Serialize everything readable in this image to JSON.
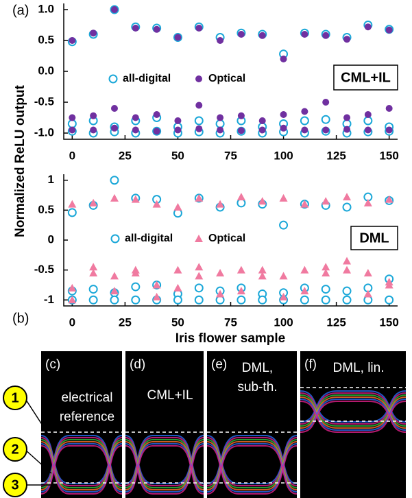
{
  "chart_data": [
    {
      "type": "scatter",
      "title": "CML+IL",
      "x": [
        0,
        10,
        20,
        30,
        40,
        50,
        60,
        70,
        80,
        90,
        100,
        110,
        120,
        130,
        140,
        150,
        0,
        10,
        20,
        30,
        40,
        50,
        60,
        70,
        80,
        90,
        100,
        110,
        120,
        130,
        140,
        150,
        0,
        10,
        20,
        30,
        40,
        50,
        60,
        70,
        80,
        90,
        100,
        110,
        120,
        130,
        140,
        150
      ],
      "series": [
        {
          "name": "all-digital",
          "color": "#1aa7d8",
          "marker": "circle-open",
          "values": [
            0.48,
            0.6,
            1.0,
            0.72,
            0.7,
            0.55,
            0.72,
            0.55,
            0.62,
            0.6,
            0.28,
            0.62,
            0.6,
            0.55,
            0.75,
            0.68,
            -0.85,
            -0.8,
            -0.9,
            -0.8,
            -0.75,
            -0.9,
            -0.8,
            -0.85,
            -0.8,
            -0.9,
            -0.85,
            -0.8,
            -0.78,
            -0.85,
            -0.8,
            -0.9,
            -0.97,
            -1.0,
            -0.98,
            -1.0,
            -0.97,
            -1.0,
            -0.98,
            -1.0,
            -0.97,
            -1.0,
            -0.98,
            -1.0,
            -0.97,
            -1.0,
            -0.98,
            -0.97
          ]
        },
        {
          "name": "Optical",
          "color": "#7030a0",
          "marker": "circle",
          "values": [
            0.5,
            0.62,
            1.0,
            0.7,
            0.68,
            0.55,
            0.7,
            0.5,
            0.6,
            0.58,
            0.2,
            0.6,
            0.58,
            0.52,
            0.72,
            0.67,
            -0.75,
            -0.72,
            -0.6,
            -0.75,
            -0.7,
            -0.8,
            -0.55,
            -0.75,
            -0.72,
            -0.8,
            -0.7,
            -0.65,
            -0.5,
            -0.75,
            -0.7,
            -0.6,
            -0.95,
            -0.95,
            -0.92,
            -0.95,
            -0.97,
            -0.95,
            -0.93,
            -0.95,
            -0.96,
            -0.95,
            -0.92,
            -0.95,
            -0.95,
            -0.94,
            -0.95,
            -0.95
          ]
        }
      ],
      "xlim": [
        -4,
        154
      ],
      "ylim": [
        -1.1,
        1.1
      ],
      "xticks": [
        0,
        25,
        50,
        75,
        100,
        125,
        150
      ],
      "yticks": [
        {
          "value": -1,
          "label": "-1.0"
        },
        -0.5,
        {
          "value": 0,
          "label": "0.0"
        },
        0.5,
        {
          "value": 1,
          "label": "1.0"
        }
      ]
    },
    {
      "type": "scatter",
      "title": "DML",
      "x": [
        0,
        10,
        20,
        30,
        40,
        50,
        60,
        70,
        80,
        90,
        100,
        110,
        120,
        130,
        140,
        150,
        0,
        10,
        20,
        30,
        40,
        50,
        60,
        70,
        80,
        90,
        100,
        110,
        120,
        130,
        140,
        150,
        0,
        10,
        20,
        30,
        40,
        50,
        60,
        70,
        80,
        90,
        100,
        110,
        120,
        130,
        140,
        150
      ],
      "series": [
        {
          "name": "all-digital",
          "color": "#1aa7d8",
          "marker": "circle-open",
          "values": [
            0.46,
            0.58,
            1.0,
            0.7,
            0.68,
            0.45,
            0.7,
            0.55,
            0.62,
            0.6,
            0.25,
            0.6,
            0.58,
            0.55,
            0.72,
            0.66,
            -0.85,
            -0.82,
            -0.88,
            -0.78,
            -0.75,
            -0.9,
            -0.8,
            -0.85,
            -0.8,
            -0.9,
            -0.88,
            -0.8,
            -0.82,
            -0.85,
            -0.8,
            -0.65,
            -1.0,
            -1.0,
            -1.0,
            -1.0,
            -1.0,
            -1.0,
            -1.0,
            -1.0,
            -1.0,
            -1.0,
            -1.0,
            -1.0,
            -1.0,
            -1.0,
            -1.0,
            -1.0
          ]
        },
        {
          "name": "Optical",
          "color": "#f07aa0",
          "marker": "triangle",
          "values": [
            0.6,
            0.62,
            0.7,
            0.68,
            0.6,
            0.55,
            0.7,
            0.6,
            0.72,
            0.65,
            0.7,
            0.6,
            0.65,
            0.72,
            0.62,
            0.68,
            -0.8,
            -0.55,
            -0.6,
            -0.55,
            -0.75,
            -0.5,
            -0.6,
            -0.55,
            -0.5,
            -0.6,
            -0.6,
            -0.5,
            -0.45,
            -0.35,
            -0.55,
            -0.7,
            -1.0,
            -0.45,
            -0.85,
            -0.5,
            -0.95,
            -0.8,
            -0.45,
            -0.9,
            -0.85,
            -0.5,
            -0.95,
            -0.85,
            -0.55,
            -0.5,
            -0.9,
            -0.75
          ]
        }
      ],
      "xlim": [
        -4,
        154
      ],
      "ylim": [
        -1.1,
        1.1
      ],
      "xticks": [
        0,
        25,
        50,
        75,
        100,
        125,
        150
      ],
      "yticks": [
        -1,
        -0.5,
        0,
        0.5,
        1
      ]
    }
  ],
  "figure": {
    "panel_a": "(a)",
    "panel_b": "(b)",
    "y_label": "Normalized ReLU output",
    "x_label": "Iris flower sample",
    "eye_panels": [
      {
        "label": "(c)",
        "lines": [
          "electrical",
          "reference"
        ]
      },
      {
        "label": "(d)",
        "lines": [
          "CML+IL"
        ]
      },
      {
        "label": "(e)",
        "lines": [
          "DML,",
          "sub-th."
        ]
      },
      {
        "label": "(f)",
        "lines": [
          "DML, lin."
        ]
      }
    ],
    "levels": [
      "1",
      "2",
      "3"
    ]
  }
}
